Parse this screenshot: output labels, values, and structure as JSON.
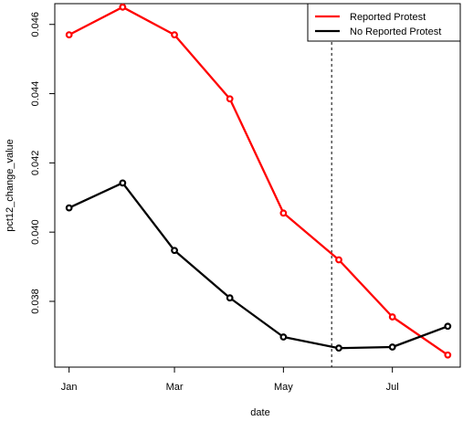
{
  "chart_data": {
    "type": "line",
    "xlabel": "date",
    "ylabel": "pct12_change_value",
    "x_tick_labels": [
      "Jan",
      "Mar",
      "May",
      "Jul"
    ],
    "x_ticks": [
      "2015-01-01",
      "2015-03-01",
      "2015-05-01",
      "2015-07-01"
    ],
    "xlim": [
      "2014-12-24",
      "2015-08-08"
    ],
    "ylim": [
      0.0361,
      0.0466
    ],
    "y_ticks": [
      0.038,
      0.04,
      0.042,
      0.044,
      0.046
    ],
    "y_tick_labels": [
      "0.038",
      "0.040",
      "0.042",
      "0.044",
      "0.046"
    ],
    "x": [
      "2015-01-01",
      "2015-01-31",
      "2015-03-01",
      "2015-04-01",
      "2015-05-01",
      "2015-06-01",
      "2015-07-01",
      "2015-08-01"
    ],
    "series": [
      {
        "name": "Reported Protest",
        "color": "#ff0000",
        "values": [
          0.0457,
          0.0465,
          0.0457,
          0.04385,
          0.04055,
          0.0392,
          0.03755,
          0.03645
        ]
      },
      {
        "name": "No Reported Protest",
        "color": "#000000",
        "values": [
          0.0407,
          0.04142,
          0.03947,
          0.0381,
          0.03697,
          0.03665,
          0.03668,
          0.03728
        ]
      }
    ],
    "vline": "2015-05-28",
    "legend_position": "top-right",
    "grid": false
  }
}
